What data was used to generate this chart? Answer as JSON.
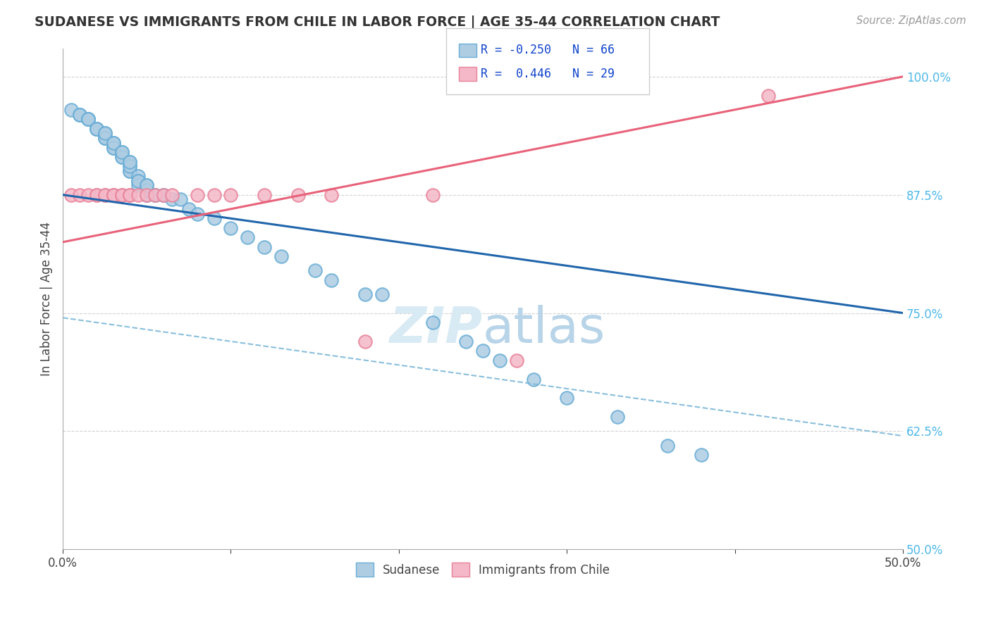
{
  "title": "SUDANESE VS IMMIGRANTS FROM CHILE IN LABOR FORCE | AGE 35-44 CORRELATION CHART",
  "source": "Source: ZipAtlas.com",
  "ylabel": "In Labor Force | Age 35-44",
  "xlim": [
    0.0,
    0.5
  ],
  "ylim": [
    0.5,
    1.03
  ],
  "xticks": [
    0.0,
    0.1,
    0.2,
    0.3,
    0.4,
    0.5
  ],
  "yticks": [
    0.5,
    0.625,
    0.75,
    0.875,
    1.0
  ],
  "ytick_labels": [
    "50.0%",
    "62.5%",
    "75.0%",
    "87.5%",
    "100.0%"
  ],
  "xtick_labels": [
    "0.0%",
    "",
    "",
    "",
    "",
    "50.0%"
  ],
  "R_sudanese": -0.25,
  "N_sudanese": 66,
  "R_chile": 0.446,
  "N_chile": 29,
  "blue_scatter_face": "#aecde3",
  "blue_scatter_edge": "#6aaed6",
  "pink_scatter_face": "#f4b8c8",
  "pink_scatter_edge": "#e8849a",
  "blue_line_color": "#2166ac",
  "pink_line_color": "#e8627a",
  "blue_dash_color": "#7db8d8",
  "sudanese_x": [
    0.005,
    0.01,
    0.01,
    0.01,
    0.015,
    0.015,
    0.015,
    0.02,
    0.02,
    0.02,
    0.02,
    0.025,
    0.025,
    0.025,
    0.025,
    0.025,
    0.03,
    0.03,
    0.03,
    0.03,
    0.03,
    0.035,
    0.035,
    0.035,
    0.035,
    0.04,
    0.04,
    0.04,
    0.04,
    0.04,
    0.04,
    0.045,
    0.045,
    0.045,
    0.045,
    0.05,
    0.05,
    0.05,
    0.05,
    0.05,
    0.055,
    0.055,
    0.06,
    0.06,
    0.065,
    0.07,
    0.075,
    0.08,
    0.09,
    0.1,
    0.11,
    0.12,
    0.13,
    0.15,
    0.16,
    0.18,
    0.19,
    0.22,
    0.24,
    0.25,
    0.26,
    0.28,
    0.3,
    0.33,
    0.36,
    0.38
  ],
  "sudanese_y": [
    0.965,
    0.96,
    0.96,
    0.96,
    0.955,
    0.955,
    0.955,
    0.945,
    0.945,
    0.945,
    0.945,
    0.94,
    0.935,
    0.935,
    0.935,
    0.94,
    0.93,
    0.925,
    0.925,
    0.925,
    0.93,
    0.92,
    0.915,
    0.915,
    0.92,
    0.91,
    0.905,
    0.9,
    0.9,
    0.905,
    0.91,
    0.895,
    0.89,
    0.885,
    0.89,
    0.885,
    0.875,
    0.875,
    0.88,
    0.885,
    0.875,
    0.875,
    0.875,
    0.875,
    0.87,
    0.87,
    0.86,
    0.855,
    0.85,
    0.84,
    0.83,
    0.82,
    0.81,
    0.795,
    0.785,
    0.77,
    0.77,
    0.74,
    0.72,
    0.71,
    0.7,
    0.68,
    0.66,
    0.64,
    0.61,
    0.6
  ],
  "chile_x": [
    0.005,
    0.01,
    0.015,
    0.02,
    0.02,
    0.025,
    0.025,
    0.03,
    0.03,
    0.03,
    0.035,
    0.035,
    0.04,
    0.04,
    0.045,
    0.05,
    0.055,
    0.06,
    0.065,
    0.08,
    0.09,
    0.1,
    0.12,
    0.14,
    0.16,
    0.18,
    0.22,
    0.27,
    0.42
  ],
  "chile_y": [
    0.875,
    0.875,
    0.875,
    0.875,
    0.875,
    0.875,
    0.875,
    0.875,
    0.875,
    0.875,
    0.875,
    0.875,
    0.875,
    0.875,
    0.875,
    0.875,
    0.875,
    0.875,
    0.875,
    0.875,
    0.875,
    0.875,
    0.875,
    0.875,
    0.875,
    0.72,
    0.875,
    0.7,
    0.98
  ],
  "background_color": "#ffffff",
  "grid_color": "#c8c8c8",
  "watermark_color": "#d8eaf4"
}
